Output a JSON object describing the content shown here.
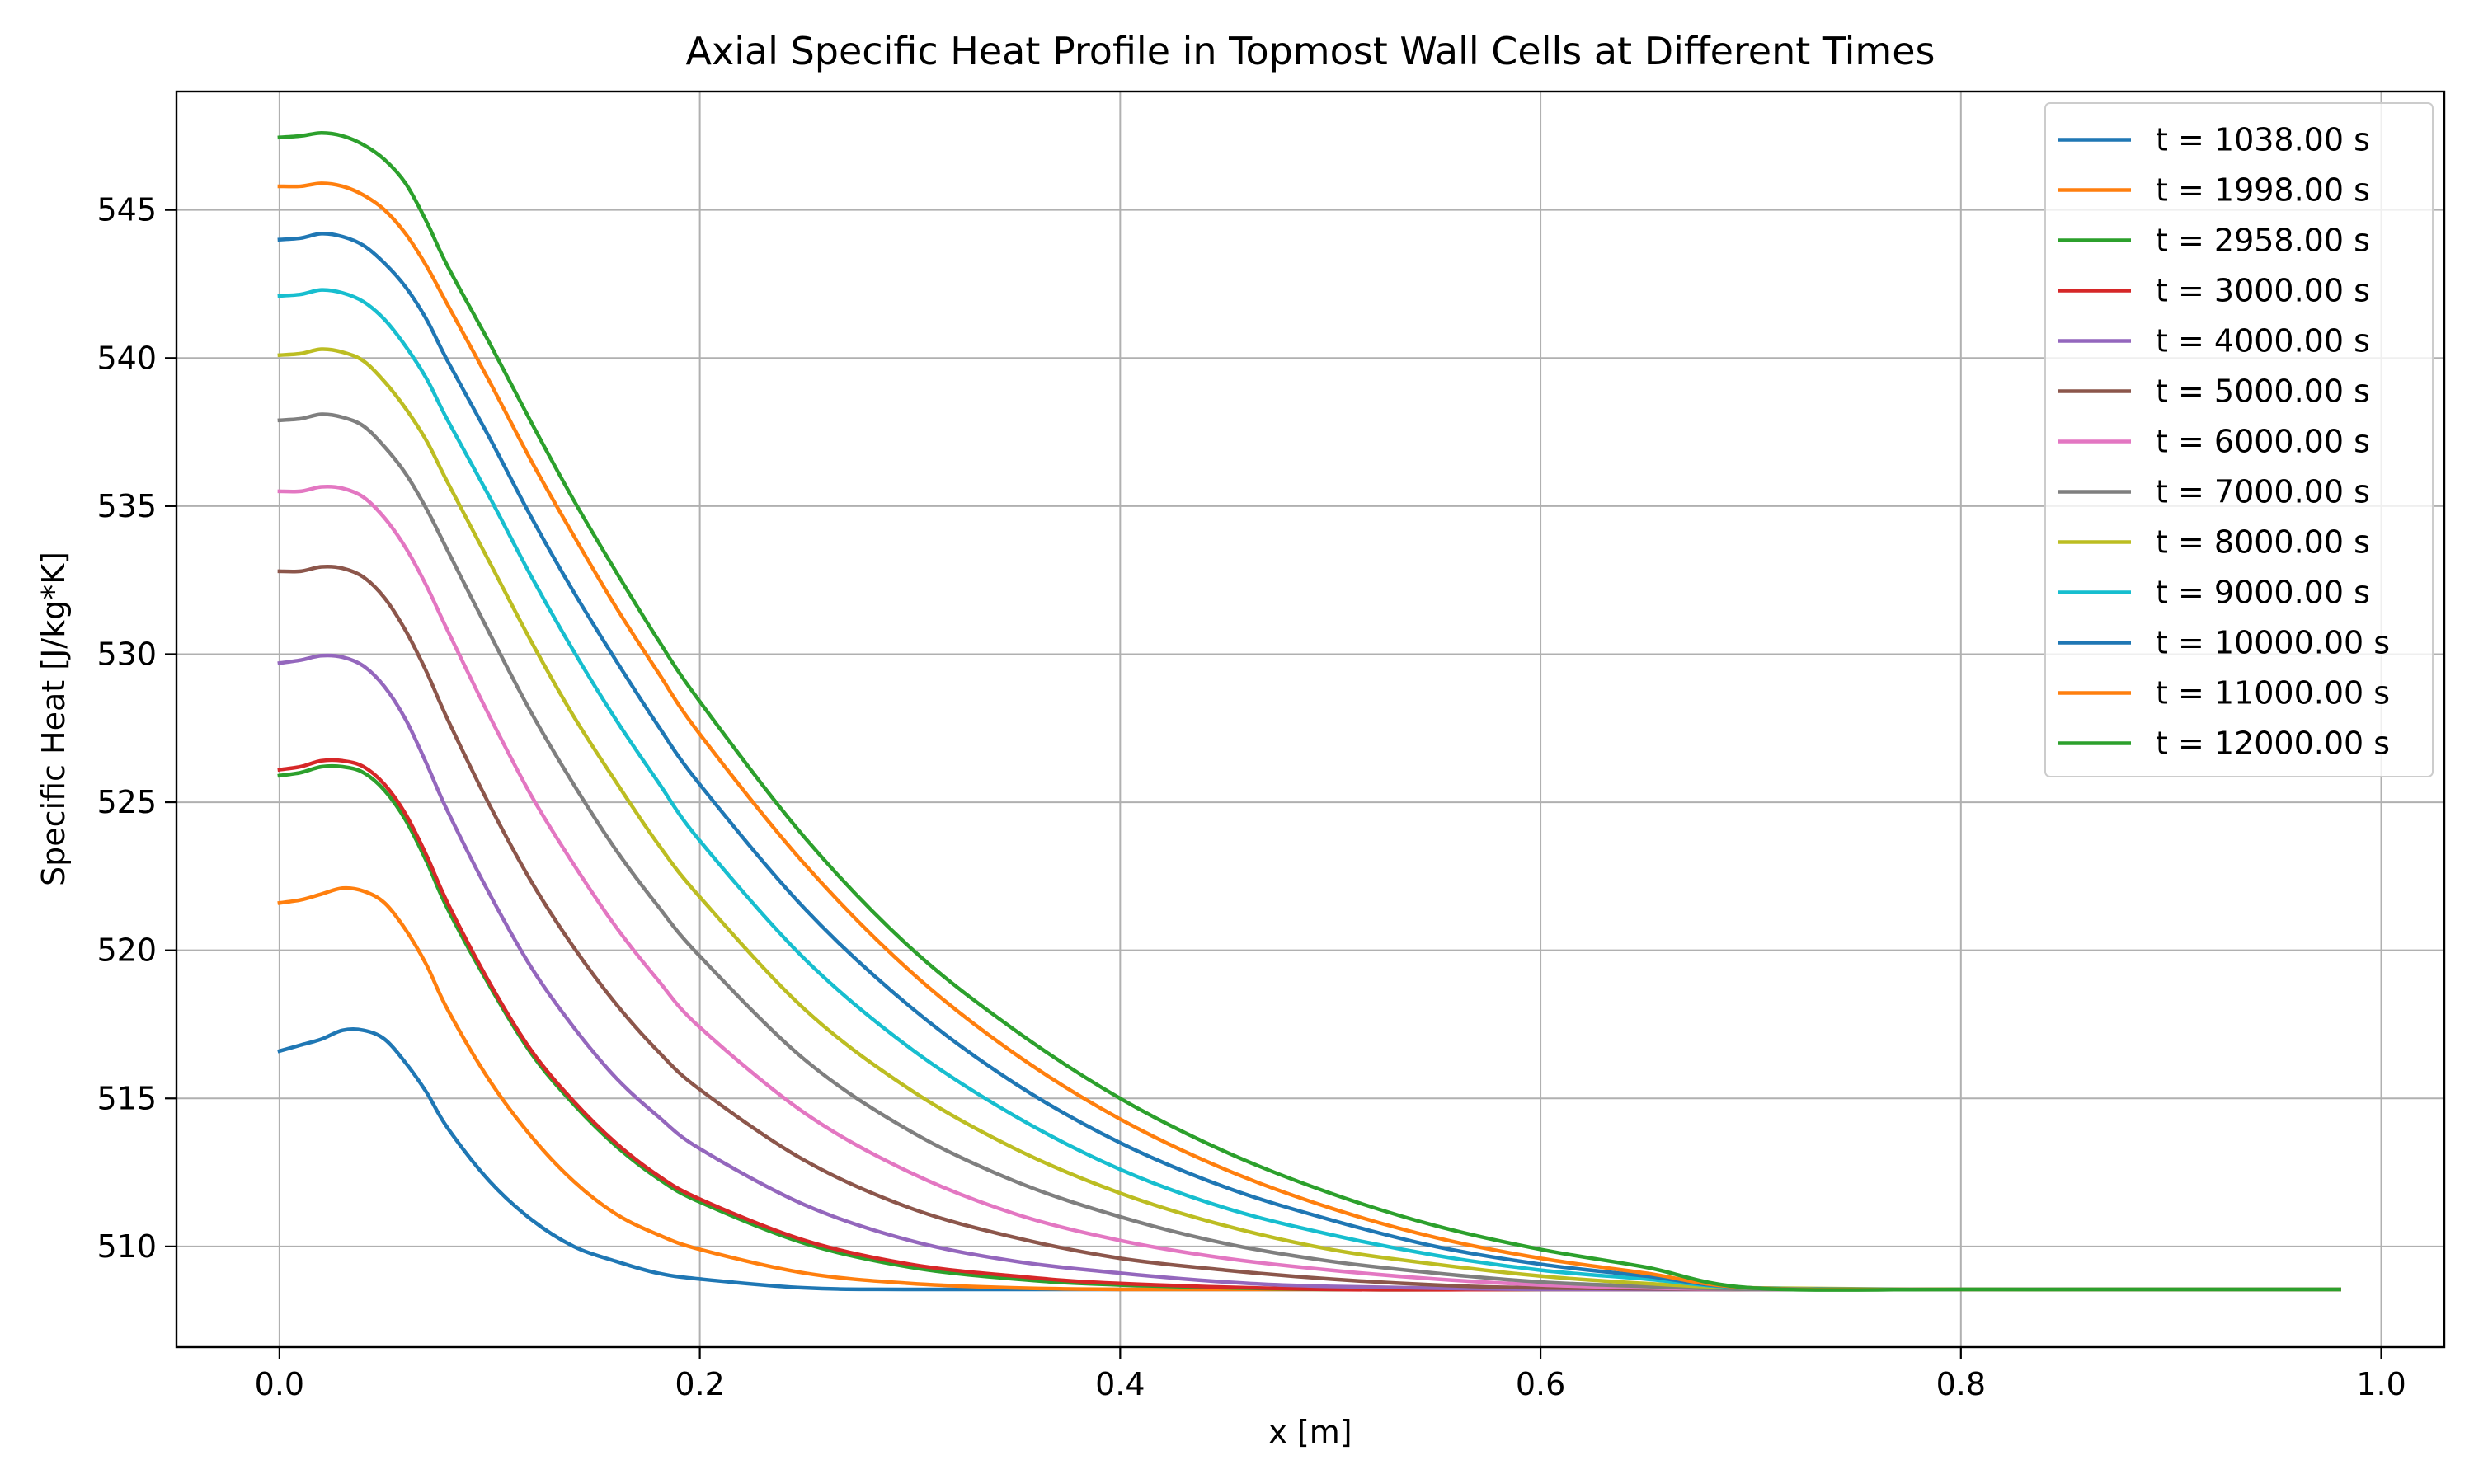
{
  "chart_data": {
    "type": "line",
    "title": "Axial Specific Heat Profile in Topmost Wall Cells at Different Times",
    "xlabel": "x [m]",
    "ylabel": "Specific Heat [J/kg*K]",
    "xlim": [
      -0.049,
      1.03
    ],
    "ylim": [
      506.6,
      549.0
    ],
    "xticks": [
      0.0,
      0.2,
      0.4,
      0.6,
      0.8,
      1.0
    ],
    "xtick_labels": [
      "0.0",
      "0.2",
      "0.4",
      "0.6",
      "0.8",
      "1.0"
    ],
    "yticks": [
      510,
      515,
      520,
      525,
      530,
      535,
      540,
      545
    ],
    "ytick_labels": [
      "510",
      "515",
      "520",
      "525",
      "530",
      "535",
      "540",
      "545"
    ],
    "grid": true,
    "legend_position": "top-right",
    "colors": {
      "background": "#ffffff",
      "grid": "#b0b0b0",
      "axes": "#000000"
    },
    "series": [
      {
        "name": "t = 1038.00 s",
        "color": "#1f77b4",
        "x": [
          0.0,
          0.01,
          0.02,
          0.03,
          0.04,
          0.05,
          0.06,
          0.07,
          0.08,
          0.1,
          0.12,
          0.14,
          0.16,
          0.18,
          0.2,
          0.25,
          0.3,
          0.4,
          0.5,
          0.6,
          0.7,
          0.8,
          0.9,
          0.98
        ],
        "y": [
          516.6,
          516.8,
          517.0,
          517.3,
          517.3,
          517.0,
          516.2,
          515.2,
          514.0,
          512.2,
          510.9,
          510.0,
          509.5,
          509.1,
          508.9,
          508.6,
          508.55,
          508.55,
          508.55,
          508.55,
          508.55,
          508.55,
          508.55,
          508.55
        ]
      },
      {
        "name": "t = 1998.00 s",
        "color": "#ff7f0e",
        "x": [
          0.0,
          0.01,
          0.02,
          0.03,
          0.04,
          0.05,
          0.06,
          0.07,
          0.08,
          0.1,
          0.12,
          0.14,
          0.16,
          0.18,
          0.2,
          0.25,
          0.3,
          0.35,
          0.4,
          0.5,
          0.6,
          0.7,
          0.8,
          0.9,
          0.98
        ],
        "y": [
          521.6,
          521.7,
          521.9,
          522.1,
          522.0,
          521.6,
          520.7,
          519.5,
          518.0,
          515.6,
          513.7,
          512.2,
          511.1,
          510.4,
          509.9,
          509.1,
          508.75,
          508.6,
          508.55,
          508.55,
          508.55,
          508.55,
          508.55,
          508.55,
          508.55
        ]
      },
      {
        "name": "t = 2958.00 s",
        "color": "#2ca02c",
        "x": [
          0.0,
          0.01,
          0.02,
          0.03,
          0.04,
          0.05,
          0.06,
          0.07,
          0.08,
          0.1,
          0.12,
          0.14,
          0.16,
          0.18,
          0.2,
          0.25,
          0.3,
          0.35,
          0.4,
          0.5,
          0.6,
          0.7,
          0.8,
          0.9,
          0.98
        ],
        "y": [
          525.9,
          526.0,
          526.2,
          526.2,
          526.0,
          525.4,
          524.4,
          523.0,
          521.4,
          518.8,
          516.5,
          514.8,
          513.4,
          512.3,
          511.5,
          510.1,
          509.3,
          508.9,
          508.7,
          508.55,
          508.55,
          508.55,
          508.55,
          508.55,
          508.55
        ]
      },
      {
        "name": "t = 3000.00 s",
        "color": "#d62728",
        "x": [
          0.0,
          0.01,
          0.02,
          0.03,
          0.04,
          0.05,
          0.06,
          0.07,
          0.08,
          0.1,
          0.12,
          0.14,
          0.16,
          0.18,
          0.2,
          0.25,
          0.3,
          0.35,
          0.4,
          0.5,
          0.6,
          0.7,
          0.8,
          0.9,
          0.98
        ],
        "y": [
          526.1,
          526.2,
          526.4,
          526.4,
          526.2,
          525.6,
          524.6,
          523.2,
          521.6,
          518.9,
          516.6,
          514.9,
          513.5,
          512.4,
          511.6,
          510.2,
          509.4,
          509.0,
          508.75,
          508.55,
          508.55,
          508.55,
          508.55,
          508.55,
          508.55
        ]
      },
      {
        "name": "t = 4000.00 s",
        "color": "#9467bd",
        "x": [
          0.0,
          0.01,
          0.02,
          0.03,
          0.04,
          0.05,
          0.06,
          0.07,
          0.08,
          0.1,
          0.12,
          0.14,
          0.16,
          0.18,
          0.2,
          0.25,
          0.3,
          0.35,
          0.4,
          0.45,
          0.5,
          0.6,
          0.7,
          0.8,
          0.9,
          0.98
        ],
        "y": [
          529.7,
          529.8,
          529.95,
          529.9,
          529.6,
          528.9,
          527.8,
          526.3,
          524.7,
          521.9,
          519.4,
          517.4,
          515.7,
          514.4,
          513.3,
          511.4,
          510.2,
          509.5,
          509.1,
          508.8,
          508.65,
          508.55,
          508.55,
          508.55,
          508.55,
          508.55
        ]
      },
      {
        "name": "t = 5000.00 s",
        "color": "#8c564b",
        "x": [
          0.0,
          0.01,
          0.02,
          0.03,
          0.04,
          0.05,
          0.06,
          0.07,
          0.08,
          0.1,
          0.12,
          0.14,
          0.16,
          0.18,
          0.2,
          0.25,
          0.3,
          0.35,
          0.4,
          0.45,
          0.5,
          0.55,
          0.6,
          0.7,
          0.8,
          0.9,
          0.98
        ],
        "y": [
          532.8,
          532.8,
          532.95,
          532.9,
          532.6,
          531.9,
          530.8,
          529.4,
          527.8,
          524.9,
          522.3,
          520.1,
          518.2,
          516.6,
          515.3,
          512.9,
          511.3,
          510.3,
          509.6,
          509.2,
          508.9,
          508.7,
          508.6,
          508.55,
          508.55,
          508.55,
          508.55
        ]
      },
      {
        "name": "t = 6000.00 s",
        "color": "#e377c2",
        "x": [
          0.0,
          0.01,
          0.02,
          0.03,
          0.04,
          0.05,
          0.06,
          0.07,
          0.08,
          0.1,
          0.12,
          0.14,
          0.16,
          0.18,
          0.2,
          0.25,
          0.3,
          0.35,
          0.4,
          0.45,
          0.5,
          0.55,
          0.6,
          0.65,
          0.7,
          0.8,
          0.9,
          0.98
        ],
        "y": [
          535.5,
          535.5,
          535.65,
          535.6,
          535.3,
          534.6,
          533.6,
          532.3,
          530.8,
          527.9,
          525.2,
          522.9,
          520.8,
          519.0,
          517.4,
          514.5,
          512.5,
          511.1,
          510.2,
          509.6,
          509.2,
          508.9,
          508.7,
          508.6,
          508.55,
          508.55,
          508.55,
          508.55
        ]
      },
      {
        "name": "t = 7000.00 s",
        "color": "#7f7f7f",
        "x": [
          0.0,
          0.01,
          0.02,
          0.03,
          0.04,
          0.05,
          0.06,
          0.07,
          0.08,
          0.1,
          0.12,
          0.14,
          0.16,
          0.18,
          0.2,
          0.25,
          0.3,
          0.35,
          0.4,
          0.45,
          0.5,
          0.55,
          0.6,
          0.65,
          0.7,
          0.8,
          0.9,
          0.98
        ],
        "y": [
          537.9,
          537.95,
          538.1,
          538.0,
          537.7,
          537.0,
          536.1,
          534.9,
          533.5,
          530.7,
          528.0,
          525.6,
          523.4,
          521.5,
          519.8,
          516.3,
          513.9,
          512.2,
          511.0,
          510.1,
          509.5,
          509.1,
          508.8,
          508.65,
          508.55,
          508.55,
          508.55,
          508.55
        ]
      },
      {
        "name": "t = 8000.00 s",
        "color": "#bcbd22",
        "x": [
          0.0,
          0.01,
          0.02,
          0.03,
          0.04,
          0.05,
          0.06,
          0.07,
          0.08,
          0.1,
          0.12,
          0.14,
          0.16,
          0.18,
          0.2,
          0.25,
          0.3,
          0.35,
          0.4,
          0.45,
          0.5,
          0.55,
          0.6,
          0.65,
          0.7,
          0.8,
          0.9,
          0.98
        ],
        "y": [
          540.1,
          540.15,
          540.3,
          540.2,
          539.9,
          539.2,
          538.3,
          537.2,
          535.8,
          533.1,
          530.4,
          527.9,
          525.7,
          523.6,
          521.8,
          518.0,
          515.3,
          513.3,
          511.8,
          510.7,
          509.9,
          509.4,
          509.0,
          508.75,
          508.6,
          508.55,
          508.55,
          508.55
        ]
      },
      {
        "name": "t = 9000.00 s",
        "color": "#17becf",
        "x": [
          0.0,
          0.01,
          0.02,
          0.03,
          0.04,
          0.05,
          0.06,
          0.07,
          0.08,
          0.1,
          0.12,
          0.14,
          0.16,
          0.18,
          0.2,
          0.25,
          0.3,
          0.35,
          0.4,
          0.45,
          0.5,
          0.55,
          0.6,
          0.65,
          0.7,
          0.8,
          0.9,
          0.98
        ],
        "y": [
          542.1,
          542.15,
          542.3,
          542.2,
          541.9,
          541.3,
          540.4,
          539.3,
          537.9,
          535.3,
          532.6,
          530.1,
          527.8,
          525.7,
          523.7,
          519.7,
          516.7,
          514.4,
          512.6,
          511.3,
          510.4,
          509.7,
          509.2,
          508.9,
          508.6,
          508.55,
          508.55,
          508.55
        ]
      },
      {
        "name": "t = 10000.00 s",
        "color": "#1f77b4",
        "x": [
          0.0,
          0.01,
          0.02,
          0.03,
          0.04,
          0.05,
          0.06,
          0.07,
          0.08,
          0.1,
          0.12,
          0.14,
          0.16,
          0.18,
          0.2,
          0.25,
          0.3,
          0.35,
          0.4,
          0.45,
          0.5,
          0.55,
          0.6,
          0.65,
          0.7,
          0.8,
          0.9,
          0.98
        ],
        "y": [
          544.0,
          544.05,
          544.2,
          544.1,
          543.8,
          543.2,
          542.4,
          541.3,
          539.9,
          537.3,
          534.6,
          532.1,
          529.8,
          527.6,
          525.6,
          521.4,
          518.1,
          515.5,
          513.5,
          512.0,
          510.9,
          510.0,
          509.4,
          509.0,
          508.6,
          508.55,
          508.55,
          508.55
        ]
      },
      {
        "name": "t = 11000.00 s",
        "color": "#ff7f0e",
        "x": [
          0.0,
          0.01,
          0.02,
          0.03,
          0.04,
          0.05,
          0.06,
          0.07,
          0.08,
          0.1,
          0.12,
          0.14,
          0.16,
          0.18,
          0.2,
          0.25,
          0.3,
          0.35,
          0.4,
          0.45,
          0.5,
          0.55,
          0.6,
          0.65,
          0.7,
          0.8,
          0.9,
          0.98
        ],
        "y": [
          545.8,
          545.8,
          545.9,
          545.8,
          545.5,
          545.0,
          544.2,
          543.1,
          541.8,
          539.2,
          536.5,
          534.0,
          531.6,
          529.4,
          527.3,
          522.9,
          519.3,
          516.5,
          514.3,
          512.6,
          511.3,
          510.3,
          509.6,
          509.1,
          508.6,
          508.55,
          508.55,
          508.55
        ]
      },
      {
        "name": "t = 12000.00 s",
        "color": "#2ca02c",
        "x": [
          0.0,
          0.01,
          0.02,
          0.03,
          0.04,
          0.05,
          0.06,
          0.07,
          0.08,
          0.1,
          0.12,
          0.14,
          0.16,
          0.18,
          0.2,
          0.25,
          0.3,
          0.35,
          0.4,
          0.45,
          0.5,
          0.55,
          0.6,
          0.65,
          0.7,
          0.8,
          0.9,
          0.98
        ],
        "y": [
          547.45,
          547.5,
          547.6,
          547.5,
          547.2,
          546.7,
          545.9,
          544.6,
          543.1,
          540.5,
          537.8,
          535.2,
          532.8,
          530.5,
          528.4,
          523.8,
          520.1,
          517.3,
          515.0,
          513.2,
          511.8,
          510.7,
          509.9,
          509.3,
          508.6,
          508.55,
          508.55,
          508.55
        ]
      }
    ]
  }
}
